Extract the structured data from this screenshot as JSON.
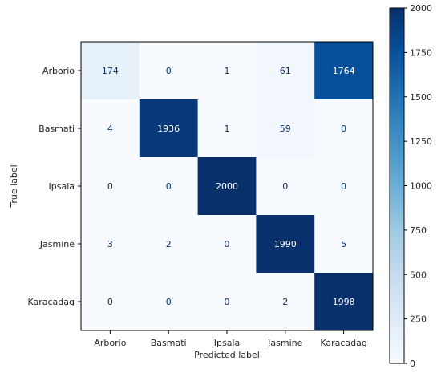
{
  "chart_data": {
    "type": "heatmap",
    "title": "",
    "xlabel": "Predicted label",
    "ylabel": "True label",
    "x_categories": [
      "Arborio",
      "Basmati",
      "Ipsala",
      "Jasmine",
      "Karacadag"
    ],
    "y_categories": [
      "Arborio",
      "Basmati",
      "Ipsala",
      "Jasmine",
      "Karacadag"
    ],
    "matrix": [
      [
        174,
        0,
        1,
        61,
        1764
      ],
      [
        4,
        1936,
        1,
        59,
        0
      ],
      [
        0,
        0,
        2000,
        0,
        0
      ],
      [
        3,
        2,
        0,
        1990,
        5
      ],
      [
        0,
        0,
        0,
        2,
        1998
      ]
    ],
    "colormap": "Blues",
    "value_range": [
      0,
      2000
    ],
    "colorbar_ticks": [
      0,
      250,
      500,
      750,
      1000,
      1250,
      1500,
      1750,
      2000
    ],
    "grid": false
  }
}
